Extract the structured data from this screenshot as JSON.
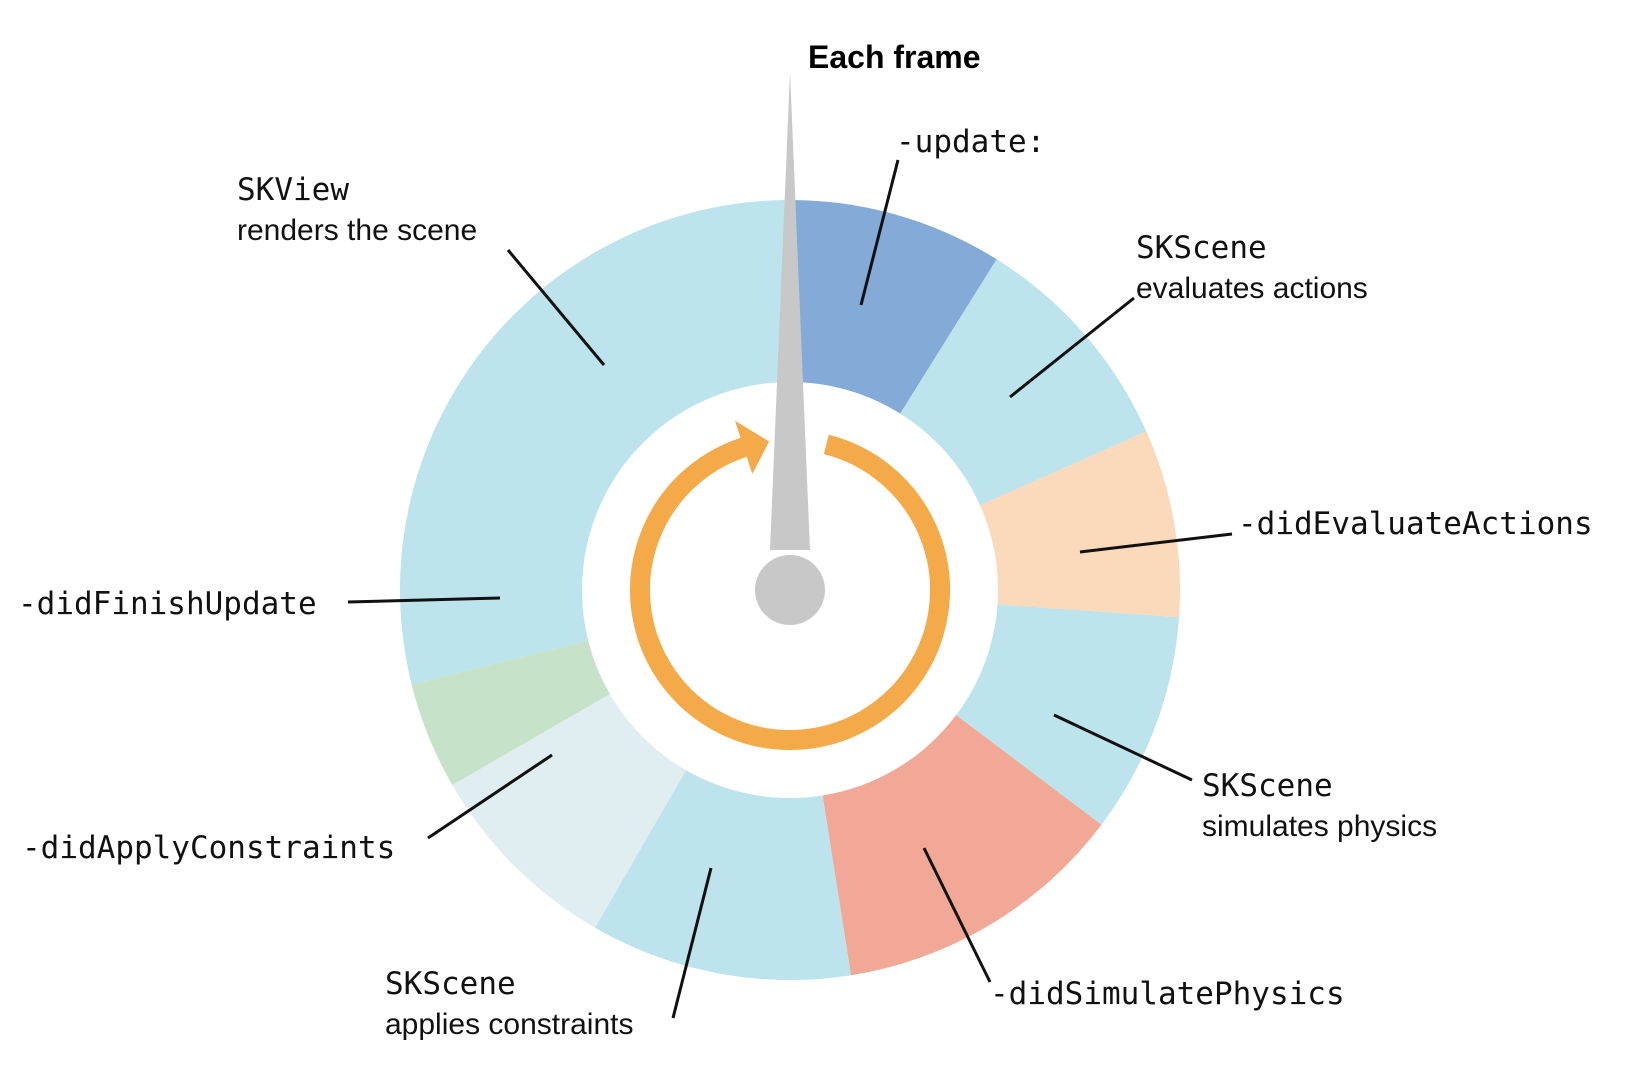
{
  "diagram": {
    "title": "Each frame",
    "colors": {
      "light_blue": "#bde3ec",
      "blue": "#84abd8",
      "peach": "#fbd9bb",
      "salmon": "#f2a897",
      "pale_blue": "#e0eef1",
      "green": "#c6e2c9",
      "orange": "#f5aa4a",
      "gray": "#c8c8c8"
    },
    "segments": [
      {
        "id": "update",
        "color": "#84abd8"
      },
      {
        "id": "skscene-evaluates-actions",
        "color": "#bde3ec"
      },
      {
        "id": "did-evaluate-actions",
        "color": "#fbd9bb"
      },
      {
        "id": "skscene-simulates-physics",
        "color": "#bde3ec"
      },
      {
        "id": "did-simulate-physics",
        "color": "#f2a897"
      },
      {
        "id": "skscene-applies-constraints",
        "color": "#bde3ec"
      },
      {
        "id": "did-apply-constraints",
        "color": "#e0eef1"
      },
      {
        "id": "did-finish-update",
        "color": "#c6e2c9"
      },
      {
        "id": "skview-renders-scene",
        "color": "#bde3ec"
      }
    ],
    "labels": {
      "update": "-update:",
      "skscene_evaluates_code": "SKScene",
      "skscene_evaluates_text": "evaluates actions",
      "did_evaluate_actions": "-didEvaluateActions",
      "skscene_simulates_code": "SKScene",
      "skscene_simulates_text": "simulates physics",
      "did_simulate_physics": "-didSimulatePhysics",
      "skscene_applies_code": "SKScene",
      "skscene_applies_text": "applies constraints",
      "did_apply_constraints": "-didApplyConstraints",
      "did_finish_update": "-didFinishUpdate",
      "skview_code": "SKView",
      "skview_text": "renders the scene"
    }
  }
}
